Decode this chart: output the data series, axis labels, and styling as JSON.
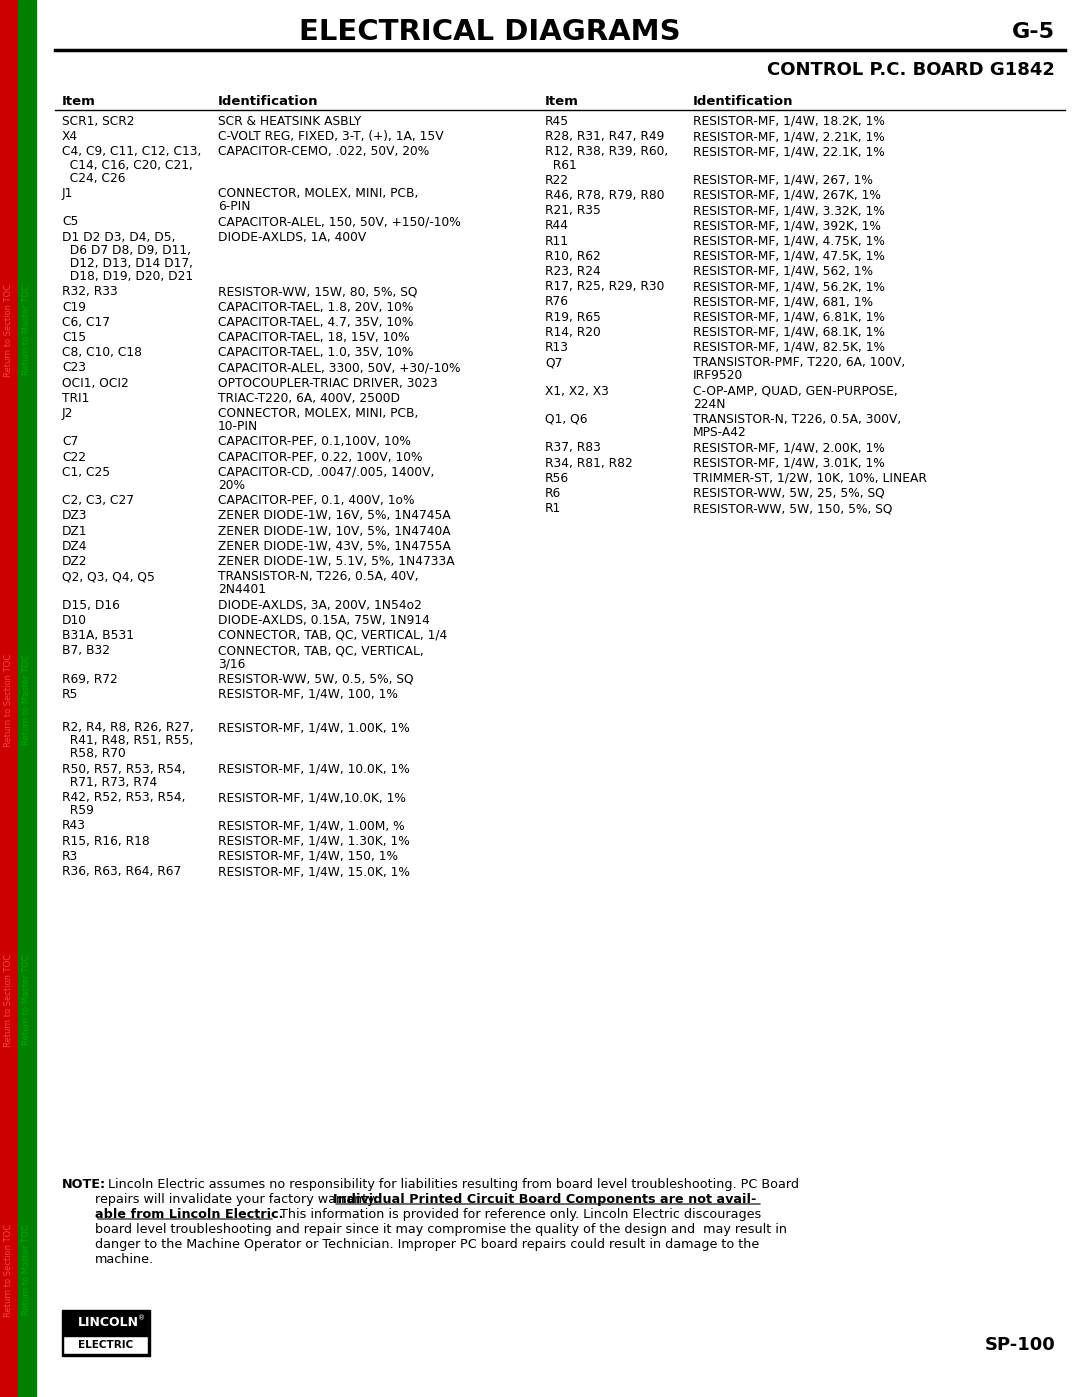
{
  "title": "ELECTRICAL DIAGRAMS",
  "page_num": "G-5",
  "subtitle": "CONTROL P.C. BOARD G1842",
  "footer_model": "SP-100",
  "left_col_header_item": "Item",
  "left_col_header_id": "Identification",
  "right_col_header_item": "Item",
  "right_col_header_id": "Identification",
  "left_col_data": [
    [
      "SCR1, SCR2",
      "SCR & HEATSINK ASBLY"
    ],
    [
      "X4",
      "C-VOLT REG, FIXED, 3-T, (+), 1A, 15V"
    ],
    [
      "C4, C9, C11, C12, C13,\n  C14, C16, C20, C21,\n  C24, C26",
      "CAPACITOR-CEMO, .022, 50V, 20%"
    ],
    [
      "J1",
      "CONNECTOR, MOLEX, MINI, PCB,\n6-PIN"
    ],
    [
      "C5",
      "CAPACITOR-ALEL, 150, 50V, +150/-10%"
    ],
    [
      "D1 D2 D3, D4, D5,\n  D6 D7 D8, D9, D11,\n  D12, D13, D14 D17,\n  D18, D19, D20, D21",
      "DIODE-AXLDS, 1A, 400V"
    ],
    [
      "R32, R33",
      "RESISTOR-WW, 15W, 80, 5%, SQ"
    ],
    [
      "C19",
      "CAPACITOR-TAEL, 1.8, 20V, 10%"
    ],
    [
      "C6, C17",
      "CAPACITOR-TAEL, 4.7, 35V, 10%"
    ],
    [
      "C15",
      "CAPACITOR-TAEL, 18, 15V, 10%"
    ],
    [
      "C8, C10, C18",
      "CAPACITOR-TAEL, 1.0, 35V, 10%"
    ],
    [
      "C23",
      "CAPACITOR-ALEL, 3300, 50V, +30/-10%"
    ],
    [
      "OCI1, OCI2",
      "OPTOCOUPLER-TRIAC DRIVER, 3023"
    ],
    [
      "TRI1",
      "TRIAC-T220, 6A, 400V, 2500D"
    ],
    [
      "J2",
      "CONNECTOR, MOLEX, MINI, PCB,\n10-PIN"
    ],
    [
      "C7",
      "CAPACITOR-PEF, 0.1,100V, 10%"
    ],
    [
      "C22",
      "CAPACITOR-PEF, 0.22, 100V, 10%"
    ],
    [
      "C1, C25",
      "CAPACITOR-CD, .0047/.005, 1400V,\n20%"
    ],
    [
      "C2, C3, C27",
      "CAPACITOR-PEF, 0.1, 400V, 1o%"
    ],
    [
      "DZ3",
      "ZENER DIODE-1W, 16V, 5%, 1N4745A"
    ],
    [
      "DZ1",
      "ZENER DIODE-1W, 10V, 5%, 1N4740A"
    ],
    [
      "DZ4",
      "ZENER DIODE-1W, 43V, 5%, 1N4755A"
    ],
    [
      "DZ2",
      "ZENER DIODE-1W, 5.1V, 5%, 1N4733A"
    ],
    [
      "Q2, Q3, Q4, Q5",
      "TRANSISTOR-N, T226, 0.5A, 40V,\n2N4401"
    ],
    [
      "D15, D16",
      "DIODE-AXLDS, 3A, 200V, 1N54o2"
    ],
    [
      "D10",
      "DIODE-AXLDS, 0.15A, 75W, 1N914"
    ],
    [
      "B31A, B531",
      "CONNECTOR, TAB, QC, VERTICAL, 1/4"
    ],
    [
      "B7, B32",
      "CONNECTOR, TAB, QC, VERTICAL,\n3/16"
    ],
    [
      "R69, R72",
      "RESISTOR-WW, 5W, 0.5, 5%, SQ"
    ],
    [
      "R5",
      "RESISTOR-MF, 1/4W, 100, 1%"
    ],
    [
      "",
      ""
    ],
    [
      "R2, R4, R8, R26, R27,\n  R41, R48, R51, R55,\n  R58, R70",
      "RESISTOR-MF, 1/4W, 1.00K, 1%"
    ],
    [
      "R50, R57, R53, R54,\n  R71, R73, R74",
      "RESISTOR-MF, 1/4W, 10.0K, 1%"
    ],
    [
      "R42, R52, R53, R54,\n  R59",
      "RESISTOR-MF, 1/4W,10.0K, 1%"
    ],
    [
      "R43",
      "RESISTOR-MF, 1/4W, 1.00M, %"
    ],
    [
      "R15, R16, R18",
      "RESISTOR-MF, 1/4W, 1.30K, 1%"
    ],
    [
      "R3",
      "RESISTOR-MF, 1/4W, 150, 1%"
    ],
    [
      "R36, R63, R64, R67",
      "RESISTOR-MF, 1/4W, 15.0K, 1%"
    ]
  ],
  "right_col_data": [
    [
      "R45",
      "RESISTOR-MF, 1/4W, 18.2K, 1%"
    ],
    [
      "R28, R31, R47, R49",
      "RESISTOR-MF, 1/4W, 2.21K, 1%"
    ],
    [
      "R12, R38, R39, R60,\n  R61",
      "RESISTOR-MF, 1/4W, 22.1K, 1%"
    ],
    [
      "R22",
      "RESISTOR-MF, 1/4W, 267, 1%"
    ],
    [
      "R46, R78, R79, R80",
      "RESISTOR-MF, 1/4W, 267K, 1%"
    ],
    [
      "R21, R35",
      "RESISTOR-MF, 1/4W, 3.32K, 1%"
    ],
    [
      "R44",
      "RESISTOR-MF, 1/4W, 392K, 1%"
    ],
    [
      "R11",
      "RESISTOR-MF, 1/4W, 4.75K, 1%"
    ],
    [
      "R10, R62",
      "RESISTOR-MF, 1/4W, 47.5K, 1%"
    ],
    [
      "R23, R24",
      "RESISTOR-MF, 1/4W, 562, 1%"
    ],
    [
      "R17, R25, R29, R30",
      "RESISTOR-MF, 1/4W, 56.2K, 1%"
    ],
    [
      "R76",
      "RESISTOR-MF, 1/4W, 681, 1%"
    ],
    [
      "R19, R65",
      "RESISTOR-MF, 1/4W, 6.81K, 1%"
    ],
    [
      "R14, R20",
      "RESISTOR-MF, 1/4W, 68.1K, 1%"
    ],
    [
      "R13",
      "RESISTOR-MF, 1/4W, 82.5K, 1%"
    ],
    [
      "Q7",
      "TRANSISTOR-PMF, T220, 6A, 100V,\nIRF9520"
    ],
    [
      "X1, X2, X3",
      "C-OP-AMP, QUAD, GEN-PURPOSE,\n224N"
    ],
    [
      "Q1, Q6",
      "TRANSISTOR-N, T226, 0.5A, 300V,\nMPS-A42"
    ],
    [
      "R37, R83",
      "RESISTOR-MF, 1/4W, 2.00K, 1%"
    ],
    [
      "R34, R81, R82",
      "RESISTOR-MF, 1/4W, 3.01K, 1%"
    ],
    [
      "R56",
      "TRIMMER-ST, 1/2W, 10K, 10%, LINEAR"
    ],
    [
      "R6",
      "RESISTOR-WW, 5W, 25, 5%, SQ"
    ],
    [
      "R1",
      "RESISTOR-WW, 5W, 150, 5%, SQ"
    ]
  ],
  "sidebar_red_color": "#cc0000",
  "sidebar_green_color": "#008000",
  "sidebar_text_color_red": "#ff4444",
  "sidebar_text_color_green": "#00aa00",
  "bg_color": "#ffffff",
  "text_color": "#000000"
}
